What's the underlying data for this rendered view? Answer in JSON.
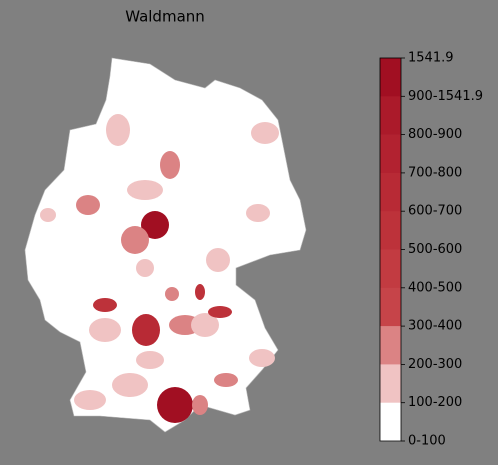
{
  "title": "Waldmann",
  "colorbar": {
    "labels": [
      "1541.9",
      "900-1541.9",
      "800-900",
      "700-800",
      "600-700",
      "500-600",
      "400-500",
      "300-400",
      "200-300",
      "100-200",
      "0-100"
    ],
    "colors": [
      "#a10f22",
      "#ab1a2a",
      "#b22230",
      "#b82a35",
      "#bd323a",
      "#c23b41",
      "#c64449",
      "#db8384",
      "#f0c3c3",
      "#ffffff"
    ]
  }
}
